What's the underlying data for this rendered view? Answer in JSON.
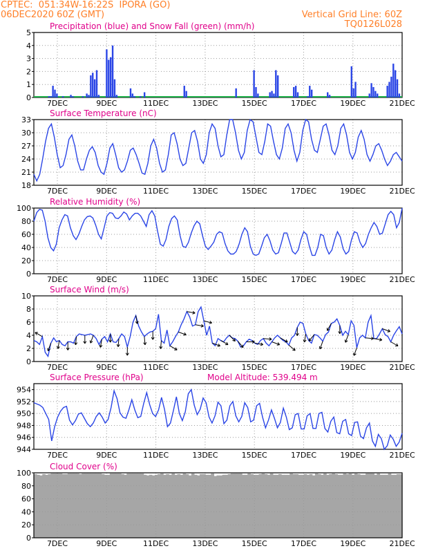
{
  "header": {
    "line1_left": "CPTEC:  051:34W-16:22S  IPORA (GO)",
    "line2_left": "06DEC2020 60Z (GMT)",
    "line2_right": "Vertical Grid Line: 60Z",
    "line3_right": "TQ0126L028"
  },
  "colors": {
    "header": "#ff7f27",
    "panel_title": "#e0008a",
    "line": "#2a45e6",
    "snow": "#22b14c",
    "cloud": "#a6a6a6",
    "wind_arrow": "#000000",
    "grid": "#999999"
  },
  "x_axis": {
    "tick_labels": [
      "7DEC",
      "9DEC",
      "11DEC",
      "13DEC",
      "15DEC",
      "17DEC",
      "19DEC",
      "21DEC"
    ]
  },
  "chart_data": [
    {
      "id": "precip",
      "type": "bar",
      "title": "Precipitation (blue) and Snow Fall (green) (mm/h)",
      "ylim": [
        0,
        5
      ],
      "yticks": [
        0,
        1,
        2,
        3,
        4,
        5
      ],
      "x": {
        "start": "06DEC 06Z",
        "step_hours": 3
      },
      "series": [
        {
          "values": [
            0,
            0,
            0,
            0,
            0,
            0,
            0,
            0.1,
            0.1,
            0.9,
            0.6,
            0.3,
            0,
            0,
            0.1,
            0,
            0,
            0,
            0.2,
            0.1,
            0,
            0,
            0,
            0,
            0.1,
            0,
            0.3,
            0.2,
            1.7,
            1.9,
            1.4,
            2.1,
            0.2,
            0,
            0,
            0,
            3.7,
            2.9,
            3.1,
            4.0,
            1.4,
            0.2,
            0,
            0,
            0,
            0,
            0,
            0,
            0.7,
            0.3,
            0.1,
            0,
            0,
            0.1,
            0,
            0.4,
            0,
            0,
            0,
            0,
            0,
            0,
            0,
            0,
            0,
            0,
            0,
            0,
            0,
            0,
            0,
            0,
            0,
            0,
            0,
            0.9,
            0.5,
            0,
            0,
            0,
            0,
            0,
            0,
            0,
            0,
            0,
            0,
            0,
            0,
            0,
            0,
            0,
            0,
            0,
            0,
            0,
            0,
            0,
            0,
            0,
            0,
            0.7,
            0,
            0,
            0,
            0,
            0,
            0,
            0,
            0,
            2.1,
            0.8,
            0.3,
            0,
            0,
            0,
            0,
            0,
            0.4,
            0.5,
            0.3,
            2.1,
            1.7,
            0,
            0,
            0,
            0,
            0,
            0,
            0,
            0.8,
            0.9,
            0.4,
            0,
            0,
            0,
            0,
            0.1,
            0.9,
            0.6,
            0,
            0,
            0,
            0,
            0,
            0,
            0,
            0.4,
            0.2,
            0,
            0,
            0,
            0,
            0,
            0,
            0,
            0,
            0,
            0,
            2.4,
            0.7,
            1.2,
            0,
            0,
            0,
            0,
            0,
            0,
            0.3,
            1.1,
            0.8,
            0.5,
            0.3,
            0,
            0,
            0,
            0,
            0.9,
            1.2,
            1.6,
            2.6,
            2.1,
            1.4,
            0.3,
            0
          ]
        }
      ]
    },
    {
      "id": "temp",
      "type": "line",
      "title": "Surface Temperature (nC)",
      "ylim": [
        18,
        33
      ],
      "yticks": [
        18,
        21,
        24,
        27,
        30,
        33
      ],
      "x": {
        "start": "06DEC 06Z",
        "step_hours": 3
      },
      "series": [
        {
          "values": [
            20.5,
            19.0,
            20.5,
            24.0,
            28.0,
            31.0,
            32.0,
            29.0,
            25.0,
            22.0,
            22.5,
            25.0,
            28.5,
            29.5,
            27.0,
            23.5,
            21.5,
            21.5,
            24.0,
            26.0,
            26.8,
            25.5,
            22.5,
            21.0,
            20.5,
            23.0,
            26.5,
            27.5,
            25.0,
            22.0,
            21.0,
            21.5,
            23.5,
            26.0,
            26.5,
            25.0,
            23.0,
            20.8,
            20.5,
            23.0,
            27.0,
            28.5,
            26.5,
            23.0,
            21.0,
            21.5,
            25.0,
            29.5,
            30.0,
            27.5,
            24.0,
            22.5,
            23.0,
            26.5,
            30.0,
            30.5,
            28.0,
            24.0,
            23.0,
            25.0,
            30.0,
            32.0,
            31.0,
            27.0,
            24.5,
            25.0,
            29.5,
            33.0,
            33.0,
            30.0,
            26.0,
            24.0,
            25.5,
            30.5,
            33.0,
            32.5,
            29.0,
            25.5,
            25.0,
            28.0,
            32.0,
            31.5,
            28.0,
            25.0,
            24.0,
            26.5,
            31.0,
            32.0,
            30.0,
            26.0,
            23.5,
            25.5,
            30.5,
            33.0,
            32.5,
            28.5,
            26.0,
            25.5,
            28.5,
            31.5,
            32.0,
            29.5,
            26.0,
            25.0,
            27.0,
            31.0,
            32.0,
            29.5,
            25.5,
            24.0,
            25.5,
            29.0,
            30.5,
            28.5,
            25.0,
            23.5,
            25.0,
            27.0,
            27.5,
            26.0,
            24.0,
            22.5,
            23.5,
            25.0,
            25.5,
            24.5,
            23.5
          ]
        }
      ]
    },
    {
      "id": "rh",
      "type": "line",
      "title": "Relative Humidity (%)",
      "ylim": [
        0,
        100
      ],
      "yticks": [
        0,
        20,
        40,
        60,
        80,
        100
      ],
      "x": {
        "start": "06DEC 06Z",
        "step_hours": 3
      },
      "series": [
        {
          "values": [
            80,
            93,
            98,
            97,
            80,
            55,
            40,
            35,
            45,
            70,
            82,
            90,
            88,
            70,
            58,
            52,
            60,
            72,
            82,
            87,
            88,
            85,
            74,
            60,
            53,
            70,
            88,
            93,
            92,
            85,
            84,
            88,
            94,
            91,
            82,
            88,
            92,
            92,
            88,
            80,
            72,
            90,
            96,
            88,
            65,
            45,
            42,
            52,
            72,
            84,
            88,
            82,
            58,
            42,
            40,
            48,
            62,
            73,
            80,
            76,
            58,
            42,
            37,
            42,
            48,
            60,
            64,
            62,
            46,
            35,
            30,
            30,
            34,
            45,
            60,
            70,
            64,
            42,
            30,
            28,
            30,
            42,
            55,
            60,
            50,
            36,
            30,
            32,
            46,
            62,
            62,
            48,
            34,
            30,
            36,
            52,
            64,
            60,
            42,
            28,
            28,
            40,
            60,
            58,
            40,
            30,
            36,
            52,
            64,
            56,
            38,
            30,
            34,
            52,
            64,
            62,
            48,
            40,
            46,
            60,
            70,
            78,
            72,
            60,
            62,
            76,
            90,
            95,
            90,
            70,
            78,
            100
          ]
        }
      ]
    },
    {
      "id": "wind",
      "type": "line",
      "title": "Surface Wind (m/s)",
      "ylim": [
        0,
        10
      ],
      "yticks": [
        0,
        2,
        4,
        6,
        8,
        10
      ],
      "x": {
        "start": "06DEC 06Z",
        "step_hours": 3
      },
      "series": [
        {
          "values": [
            3.2,
            3.0,
            2.6,
            3.8,
            1.4,
            0.8,
            2.8,
            3.6,
            3.0,
            3.2,
            2.6,
            2.4,
            3.0,
            3.0,
            2.8,
            3.8,
            4.2,
            4.1,
            4.0,
            4.1,
            4.2,
            4.0,
            3.5,
            2.6,
            3.4,
            3.8,
            3.0,
            4.2,
            3.0,
            2.9,
            3.5,
            4.2,
            3.8,
            2.2,
            3.8,
            6.0,
            7.0,
            5.4,
            4.5,
            3.8,
            4.2,
            4.5,
            4.6,
            5.0,
            7.2,
            3.2,
            2.8,
            4.8,
            2.4,
            3.0,
            3.8,
            4.5,
            5.6,
            6.5,
            7.6,
            6.8,
            5.4,
            5.6,
            7.6,
            8.3,
            6.2,
            4.0,
            5.4,
            2.8,
            2.4,
            3.5,
            3.2,
            3.0,
            3.6,
            4.0,
            3.6,
            3.5,
            3.1,
            2.2,
            2.4,
            3.0,
            3.4,
            3.2,
            2.8,
            2.6,
            3.2,
            3.5,
            2.8,
            2.4,
            3.0,
            3.6,
            4.0,
            3.6,
            3.2,
            3.0,
            2.5,
            3.6,
            4.0,
            5.2,
            6.0,
            5.8,
            4.2,
            3.2,
            2.8,
            4.1,
            4.0,
            3.6,
            3.1,
            4.1,
            4.5,
            5.8,
            6.0,
            6.5,
            5.5,
            4.0,
            4.6,
            4.1,
            6.2,
            5.5,
            2.1,
            3.6,
            4.0,
            3.6,
            6.0,
            7.0,
            3.5,
            3.5,
            4.2,
            5.0,
            4.1,
            3.8,
            3.0,
            4.0,
            4.7,
            5.3,
            4.2
          ]
        }
      ],
      "wind_direction_arrows": true
    },
    {
      "id": "pres",
      "type": "line",
      "title": "Surface Pressure (hPa)",
      "annotation": "Model Altitude: 539.494 m",
      "ylim": [
        944,
        955
      ],
      "yticks": [
        944,
        946,
        948,
        950,
        952,
        954
      ],
      "x": {
        "start": "06DEC 06Z",
        "step_hours": 3
      },
      "series": [
        {
          "values": [
            951.8,
            951.6,
            951.4,
            951.0,
            950.0,
            949.0,
            945.4,
            947.8,
            949.4,
            950.4,
            951.0,
            951.2,
            948.9,
            948.1,
            948.8,
            949.9,
            950.1,
            949.2,
            948.3,
            947.8,
            948.4,
            949.5,
            950.1,
            949.4,
            948.4,
            949.0,
            951.0,
            953.8,
            952.5,
            950.1,
            949.4,
            949.2,
            950.6,
            952.3,
            950.6,
            949.3,
            949.5,
            951.7,
            953.5,
            951.5,
            950.0,
            949.5,
            950.6,
            952.7,
            950.7,
            947.8,
            948.4,
            950.5,
            952.8,
            950.0,
            948.8,
            950.3,
            953.3,
            954.0,
            951.4,
            949.8,
            950.7,
            952.6,
            951.8,
            949.4,
            948.4,
            949.6,
            951.9,
            951.3,
            948.3,
            948.9,
            951.3,
            952.0,
            949.6,
            948.6,
            949.5,
            951.8,
            951.0,
            948.6,
            948.9,
            951.3,
            951.7,
            949.4,
            947.6,
            948.9,
            950.6,
            949.2,
            947.6,
            948.5,
            950.9,
            949.4,
            947.3,
            947.6,
            949.8,
            950.0,
            947.4,
            947.4,
            949.6,
            950.0,
            947.5,
            947.5,
            950.0,
            950.2,
            947.5,
            946.9,
            948.7,
            949.4,
            946.8,
            946.6,
            948.7,
            949.0,
            946.6,
            946.3,
            948.5,
            948.6,
            946.2,
            945.8,
            947.6,
            948.4,
            945.4,
            944.5,
            946.5,
            945.8,
            944.0,
            944.6,
            946.4,
            945.7,
            944.5,
            945.2,
            946.7
          ]
        }
      ]
    },
    {
      "id": "cloud",
      "type": "bar",
      "title": "Cloud Cover (%)",
      "ylim": [
        0,
        100
      ],
      "yticks": [
        0,
        20,
        40,
        60,
        80,
        100
      ],
      "x": {
        "start": "06DEC 06Z",
        "step_hours": 3
      },
      "series": [
        {
          "values": [
            98,
            97,
            96,
            98,
            97,
            98,
            99,
            99,
            99,
            99,
            98,
            98,
            99,
            99,
            99,
            99,
            98,
            99,
            99,
            99,
            99,
            99,
            99,
            99,
            98,
            97,
            97,
            99,
            99,
            99,
            99,
            98,
            97,
            99,
            99,
            99,
            99,
            99,
            99,
            97,
            96,
            97,
            96,
            97,
            98,
            99,
            97,
            98,
            97,
            99,
            97,
            98,
            97,
            99,
            98,
            96,
            99,
            97,
            96,
            98,
            98,
            97,
            97,
            99,
            95,
            96,
            96,
            97,
            97,
            98,
            99,
            99,
            99,
            99,
            97,
            97,
            99,
            98,
            97,
            97,
            98,
            99,
            98,
            97,
            99,
            97,
            97,
            98,
            97,
            97,
            97,
            99,
            98,
            98,
            97,
            97,
            98,
            97,
            98,
            96,
            99,
            98,
            97,
            99,
            97,
            98,
            99,
            98,
            97,
            97,
            99,
            98,
            99,
            97,
            99,
            98,
            97,
            97,
            99,
            99,
            99,
            97,
            99,
            97,
            97,
            97,
            99,
            97,
            97,
            98,
            98
          ]
        }
      ]
    }
  ]
}
